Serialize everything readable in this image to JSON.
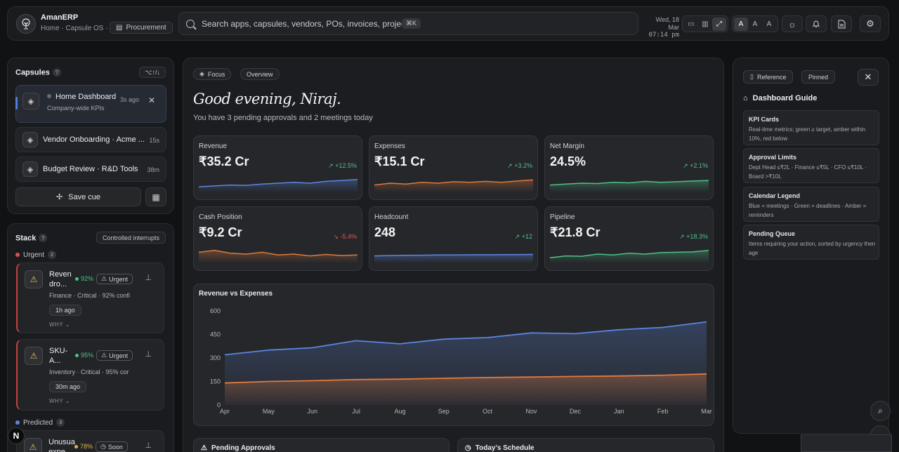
{
  "header": {
    "app_title": "AmanERP",
    "breadcrumb": "Home · Capsule OS ·",
    "context_pill": "Procurement",
    "search_placeholder": "Search apps, capsules, vendors, POs, invoices, projects...",
    "search_shortcut": "⌘K",
    "date": "Wed, 18 Mar",
    "time": "07:14 pm",
    "font_sizes": [
      "A",
      "A",
      "A"
    ]
  },
  "capsules": {
    "title": "Capsules",
    "help": "?",
    "shortcut": "⌥↑/↓",
    "items": [
      {
        "name": "Home Dashboard",
        "sub": "Company-wide KPIs",
        "time": "3s ago",
        "active": true
      },
      {
        "name": "Vendor Onboarding · Acme ...",
        "time": "15s"
      },
      {
        "name": "Budget Review · R&D Tools",
        "time": "38m"
      }
    ],
    "save_label": "Save cue"
  },
  "stack": {
    "title": "Stack",
    "help": "?",
    "controlled": "Controlled interrupts",
    "urgent": {
      "label": "Urgent",
      "count": "2"
    },
    "predicted": {
      "label": "Predicted",
      "count": "3"
    },
    "cards": [
      {
        "title": "Reven dro...",
        "pct": "92%",
        "tag": "Urgent",
        "meta": "Finance · Critical · 92% confi",
        "ago": "1h ago",
        "why": "WHY"
      },
      {
        "title": "SKU-A...",
        "pct": "95%",
        "tag": "Urgent",
        "meta": "Inventory · Critical · 95% cor",
        "ago": "30m ago",
        "why": "WHY"
      },
      {
        "title": "Unusua expe...",
        "pct": "78%",
        "tag": "Soon"
      }
    ]
  },
  "main": {
    "tabs": [
      "Focus",
      "Overview"
    ],
    "greeting": "Good evening, Niraj.",
    "subtitle": "You have 3 pending approvals and 2 meetings today",
    "kpis": [
      {
        "label": "Revenue",
        "value": "₹35.2 Cr",
        "change": "+12.5%",
        "trend": "up",
        "color": "#5b86e0"
      },
      {
        "label": "Expenses",
        "value": "₹15.1 Cr",
        "change": "+3.2%",
        "trend": "up",
        "color": "#d97b3c"
      },
      {
        "label": "Net Margin",
        "value": "24.5%",
        "change": "+2.1%",
        "trend": "up",
        "color": "#4fbf86"
      },
      {
        "label": "Cash Position",
        "value": "₹9.2 Cr",
        "change": "-5.4%",
        "trend": "down",
        "color": "#d97b3c"
      },
      {
        "label": "Headcount",
        "value": "248",
        "change": "+12",
        "trend": "up",
        "color": "#5b86e0"
      },
      {
        "label": "Pipeline",
        "value": "₹21.8 Cr",
        "change": "+18.3%",
        "trend": "up",
        "color": "#4fbf86"
      }
    ],
    "pending_title": "Pending Approvals",
    "schedule_title": "Today's Schedule"
  },
  "chart_data": {
    "type": "area",
    "title": "Revenue vs Expenses",
    "categories": [
      "Apr",
      "May",
      "Jun",
      "Jul",
      "Aug",
      "Sep",
      "Oct",
      "Nov",
      "Dec",
      "Jan",
      "Feb",
      "Mar"
    ],
    "ylim": [
      0,
      600
    ],
    "yticks": [
      0,
      150,
      300,
      450,
      600
    ],
    "series": [
      {
        "values": [
          320,
          350,
          365,
          410,
          390,
          420,
          430,
          460,
          455,
          480,
          495,
          530
        ],
        "color": "#5b86e0"
      },
      {
        "values": [
          140,
          150,
          155,
          162,
          165,
          170,
          175,
          178,
          182,
          185,
          190,
          198
        ],
        "color": "#e07b3d"
      }
    ],
    "grid": false
  },
  "guide": {
    "reference": "Reference",
    "pinned": "Pinned",
    "title": "Dashboard Guide",
    "cards": [
      {
        "h": "KPI Cards",
        "b": "Real-time metrics; green ≥ target, amber within 10%, red below"
      },
      {
        "h": "Approval Limits",
        "b": "Dept Head ≤₹2L · Finance ≤₹5L · CFO ≤₹10L · Board >₹10L"
      },
      {
        "h": "Calendar Legend",
        "b": "Blue = meetings · Green = deadlines · Amber = reminders"
      },
      {
        "h": "Pending Queue",
        "b": "Items requiring your action, sorted by urgency then age"
      }
    ]
  }
}
